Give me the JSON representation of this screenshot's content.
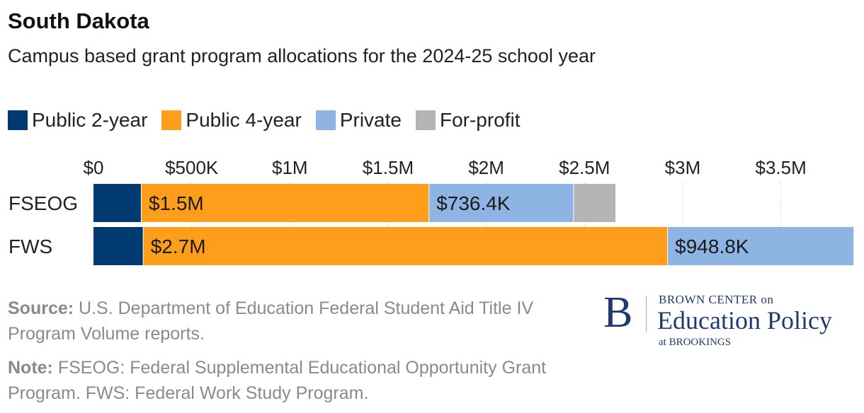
{
  "header": {
    "title": "South Dakota",
    "subtitle": "Campus based grant program allocations for the 2024-25 school year"
  },
  "legend": [
    {
      "label": "Public 2-year",
      "color": "#003a70"
    },
    {
      "label": "Public 4-year",
      "color": "#ff9e1b"
    },
    {
      "label": "Private",
      "color": "#8db4e2"
    },
    {
      "label": "For-profit",
      "color": "#b4b4b4"
    }
  ],
  "chart_data": {
    "type": "bar",
    "orientation": "horizontal",
    "stacked": true,
    "categories": [
      "FSEOG",
      "FWS"
    ],
    "series": [
      {
        "name": "Public 2-year",
        "color": "#003a70",
        "values": [
          245000,
          255000
        ]
      },
      {
        "name": "Public 4-year",
        "color": "#ff9e1b",
        "values": [
          1465000,
          2670000
        ]
      },
      {
        "name": "Private",
        "color": "#8db4e2",
        "values": [
          736400,
          948800
        ]
      },
      {
        "name": "For-profit",
        "color": "#b4b4b4",
        "values": [
          215000,
          0
        ]
      }
    ],
    "data_labels": [
      [
        "",
        "$1.5M",
        "$736.4K",
        ""
      ],
      [
        "",
        "$2.7M",
        "$948.8K",
        ""
      ]
    ],
    "xlim": [
      0,
      3880000
    ],
    "xticks": [
      0,
      500000,
      1000000,
      1500000,
      2000000,
      2500000,
      3000000,
      3500000
    ],
    "xtick_labels": [
      "$0",
      "$500K",
      "$1M",
      "$1.5M",
      "$2M",
      "$2.5M",
      "$3M",
      "$3.5M"
    ],
    "grid": true,
    "legend_position": "top-left"
  },
  "footer": {
    "source_label": "Source:",
    "source_text": "U.S. Department of Education Federal Student Aid Title IV Program Volume reports.",
    "note_label": "Note:",
    "note_text": "FSEOG: Federal Supplemental Educational Opportunity Grant Program. FWS: Federal Work Study Program."
  },
  "logo": {
    "mark": "B",
    "line1": "BROWN CENTER on",
    "line2": "Education Policy",
    "line3": "at BROOKINGS"
  }
}
